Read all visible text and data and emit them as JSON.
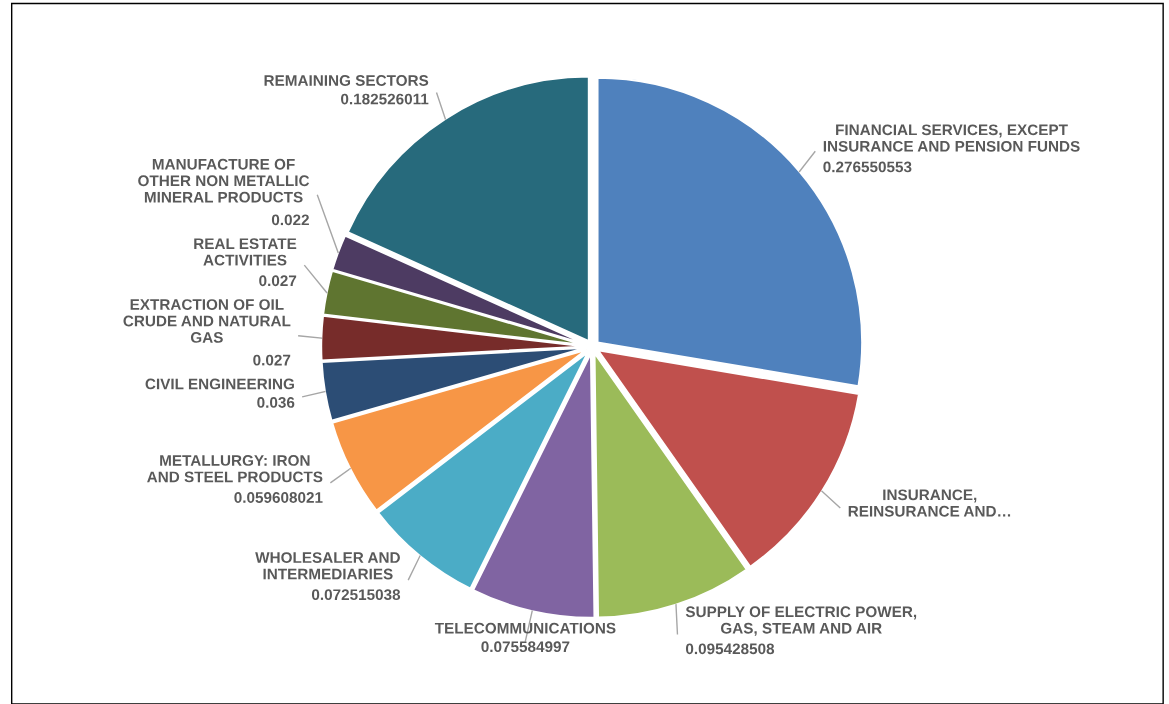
{
  "chart_data": {
    "type": "pie",
    "categories": [
      "FINANCIAL SERVICES, EXCEPT\nINSURANCE AND PENSION FUNDS",
      "INSURANCE,\nREINSURANCE AND…",
      "SUPPLY OF ELECTRIC POWER,\nGAS, STEAM AND AIR",
      "TELECOMMUNICATIONS",
      "WHOLESALER AND\nINTERMEDIARIES",
      "METALLURGY: IRON\nAND STEEL PRODUCTS",
      "CIVIL ENGINEERING",
      "EXTRACTION OF OIL\nCRUDE AND NATURAL\nGAS",
      "REAL ESTATE\nACTIVITIES",
      "MANUFACTURE OF\nOTHER NON METALLIC\nMINERAL PRODUCTS",
      "REMAINING SECTORS"
    ],
    "values": [
      0.276550553,
      0.126,
      0.095428508,
      0.075584997,
      0.072515038,
      0.059608021,
      0.036,
      0.027,
      0.027,
      0.022,
      0.182526011
    ],
    "value_labels": [
      "0.276550553",
      null,
      "0.095428508",
      "0.075584997",
      "0.072515038",
      "0.059608021",
      "0.036",
      "0.027",
      "0.027",
      "0.022",
      "0.182526011"
    ],
    "colors": [
      "#4f81bd",
      "#c0504d",
      "#9bbb59",
      "#8064a2",
      "#4bacc6",
      "#f79646",
      "#2c4d75",
      "#772c2a",
      "#5f7530",
      "#4d3b62",
      "#276a7c"
    ],
    "legend": false
  }
}
